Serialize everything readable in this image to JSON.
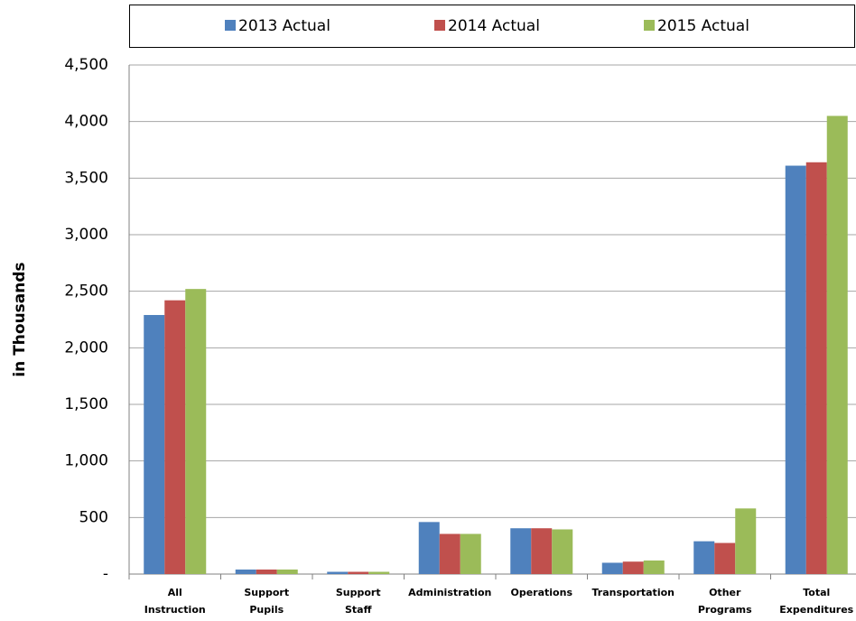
{
  "chart_data": {
    "type": "bar",
    "y_label": "in Thousands",
    "categories": [
      [
        "All",
        "Instruction"
      ],
      [
        "Support",
        "Pupils"
      ],
      [
        "Support",
        "Staff"
      ],
      [
        "Administration"
      ],
      [
        "Operations"
      ],
      [
        "Transportation"
      ],
      [
        "Other",
        "Programs"
      ],
      [
        "Total",
        "Expenditures"
      ]
    ],
    "series": [
      {
        "name": "2013 Actual",
        "color": "#4f81bd",
        "values": [
          2290,
          40,
          20,
          460,
          405,
          100,
          290,
          3610
        ]
      },
      {
        "name": "2014 Actual",
        "color": "#c0504d",
        "values": [
          2420,
          40,
          20,
          355,
          405,
          110,
          275,
          3640
        ]
      },
      {
        "name": "2015 Actual",
        "color": "#9bbb59",
        "values": [
          2520,
          40,
          20,
          355,
          395,
          120,
          580,
          4050
        ]
      }
    ],
    "ylim": [
      0,
      4500
    ],
    "yticks": [
      {
        "value": 0,
        "label": "-"
      },
      500,
      {
        "value": 1000,
        "label": "1,000"
      },
      {
        "value": 1500,
        "label": "1,500"
      },
      {
        "value": 2000,
        "label": "2,000"
      },
      {
        "value": 2500,
        "label": "2,500"
      },
      {
        "value": 3000,
        "label": "3,000"
      },
      {
        "value": 3500,
        "label": "3,500"
      },
      {
        "value": 4000,
        "label": "4,000"
      },
      {
        "value": 4500,
        "label": "4,500"
      }
    ],
    "grid": true,
    "legend": "top"
  }
}
